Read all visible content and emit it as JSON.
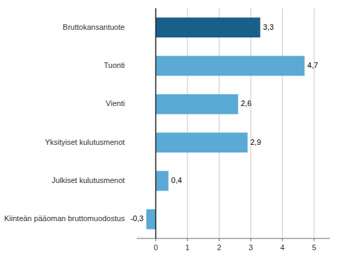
{
  "chart_data": {
    "type": "bar",
    "orientation": "horizontal",
    "categories": [
      "Kiinteän pääoman bruttomuodostus",
      "Julkiset kulutusmenot",
      "Yksityiset kulutusmenot",
      "Vienti",
      "Tuonti",
      "Bruttokansantuote"
    ],
    "values": [
      -0.3,
      0.4,
      2.9,
      2.6,
      4.7,
      3.3
    ],
    "value_labels": [
      "-0,3",
      "0,4",
      "2,9",
      "2,6",
      "4,7",
      "3,3"
    ],
    "data_labels": true,
    "colors": [
      "#5aaad5",
      "#5aaad5",
      "#5aaad5",
      "#5aaad5",
      "#5aaad5",
      "#1a5f8a"
    ],
    "xlim": [
      -0.6,
      5.5
    ],
    "xticks": [
      0,
      1,
      2,
      3,
      4,
      5
    ],
    "grid": true
  }
}
